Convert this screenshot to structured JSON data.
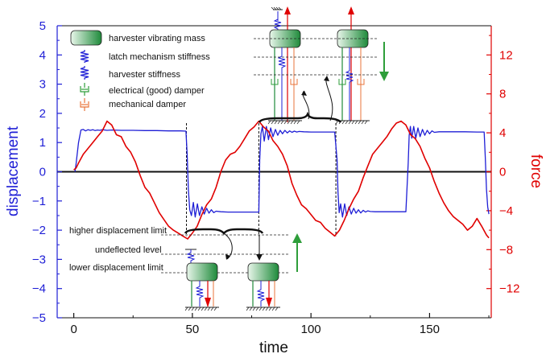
{
  "chart_data": {
    "type": "line",
    "xlabel": "time",
    "ylabel_left": "displacement",
    "ylabel_right": "force",
    "xlim": [
      -7,
      176
    ],
    "xticks": [
      0,
      50,
      100,
      150
    ],
    "ylim_left": [
      -5,
      5
    ],
    "yticks_left": [
      5,
      4,
      3,
      2,
      1,
      0,
      -1,
      -2,
      -3,
      -4,
      -5
    ],
    "ylim_right": [
      -15,
      15
    ],
    "yticks_right": [
      12,
      8,
      4,
      0,
      -4,
      -8,
      -12
    ],
    "series": [
      {
        "axis": "left",
        "color": "#1f1fd6",
        "x": [
          0.5,
          1.0,
          2.0,
          3.0,
          4.0,
          5.0,
          6.0,
          7.0,
          8.0,
          9.0,
          10.0,
          11.0,
          12.0,
          14.0,
          16.0,
          20.0,
          25.0,
          30.0,
          35.0,
          40.0,
          45.0,
          47.3,
          47.8,
          48.3,
          48.9,
          49.6,
          50.4,
          51.2,
          52.1,
          53.0,
          54.0,
          55.0,
          56.0,
          57.0,
          58.0,
          59.0,
          60.0,
          62.0,
          65.0,
          70.0,
          75.0,
          78.0,
          78.4,
          78.9,
          79.5,
          80.3,
          81.2,
          82.1,
          83.0,
          84.0,
          85.0,
          86.0,
          87.0,
          88.0,
          89.0,
          90.0,
          91.0,
          92.0,
          93.0,
          94.0,
          95.0,
          97.0,
          100.0,
          105.0,
          110.0,
          111.0,
          111.4,
          111.9,
          112.5,
          113.3,
          114.2,
          115.1,
          116.0,
          117.0,
          118.0,
          119.0,
          120.0,
          121.0,
          122.0,
          123.0,
          124.0,
          125.0,
          127.0,
          130.0,
          135.0,
          140.0,
          141.0,
          141.4,
          141.9,
          142.5,
          143.3,
          144.2,
          145.1,
          146.0,
          147.0,
          148.0,
          149.0,
          150.0,
          151.0,
          152.0,
          154.0,
          157.0,
          160.0,
          165.0,
          170.0,
          173.0,
          173.5,
          174.0,
          174.5,
          175.0
        ],
        "y": [
          0.0,
          0.3,
          1.0,
          1.43,
          1.45,
          1.4,
          1.44,
          1.42,
          1.44,
          1.41,
          1.43,
          1.42,
          1.44,
          1.42,
          1.43,
          1.42,
          1.42,
          1.41,
          1.41,
          1.4,
          1.4,
          1.39,
          0.6,
          -0.6,
          -1.3,
          -1.5,
          -1.05,
          -1.55,
          -1.1,
          -1.5,
          -1.2,
          -1.45,
          -1.25,
          -1.42,
          -1.3,
          -1.4,
          -1.35,
          -1.37,
          -1.38,
          -1.38,
          -1.38,
          -1.38,
          0.4,
          1.3,
          1.55,
          1.05,
          1.55,
          1.1,
          1.5,
          1.2,
          1.45,
          1.25,
          1.42,
          1.3,
          1.42,
          1.33,
          1.4,
          1.35,
          1.39,
          1.36,
          1.38,
          1.37,
          1.36,
          1.36,
          1.36,
          0.4,
          -0.7,
          -1.4,
          -1.1,
          -1.55,
          -1.1,
          -1.5,
          -1.2,
          -1.45,
          -1.25,
          -1.42,
          -1.3,
          -1.41,
          -1.32,
          -1.38,
          -1.34,
          -1.36,
          -1.37,
          -1.37,
          -1.37,
          -1.37,
          0.3,
          1.25,
          1.55,
          1.15,
          1.55,
          1.15,
          1.5,
          1.2,
          1.45,
          1.25,
          1.42,
          1.3,
          1.4,
          1.35,
          1.37,
          1.37,
          1.37,
          1.37,
          1.36,
          1.36,
          0.5,
          -0.6,
          -1.2,
          -1.45
        ]
      },
      {
        "axis": "right",
        "color": "#e00000",
        "x": [
          0.0,
          1.0,
          2.0,
          4.0,
          6.0,
          8.0,
          10.0,
          12.0,
          14.0,
          16.0,
          18.0,
          20.0,
          22.0,
          24.0,
          26.0,
          28.0,
          30.0,
          32.0,
          34.0,
          36.0,
          38.0,
          40.0,
          42.0,
          44.0,
          46.0,
          48.0,
          50.0,
          52.0,
          54.0,
          56.0,
          58.0,
          60.0,
          62.0,
          64.0,
          66.0,
          68.0,
          70.0,
          72.0,
          74.0,
          76.0,
          78.0,
          80.0,
          82.0,
          84.0,
          86.0,
          88.0,
          90.0,
          92.0,
          94.0,
          96.0,
          98.0,
          100.0,
          102.0,
          104.0,
          106.0,
          108.0,
          110.0,
          112.0,
          114.0,
          116.0,
          118.0,
          120.0,
          122.0,
          124.0,
          126.0,
          128.0,
          130.0,
          132.0,
          134.0,
          136.0,
          138.0,
          140.0,
          142.0,
          144.0,
          146.0,
          148.0,
          150.0,
          152.0,
          154.0,
          156.0,
          158.0,
          160.0,
          162.0,
          164.0,
          166.0,
          168.0,
          170.0,
          172.0,
          174.0,
          175.0
        ],
        "y": [
          0.2,
          0.4,
          0.9,
          1.8,
          2.4,
          3.0,
          3.6,
          4.2,
          5.2,
          4.8,
          3.8,
          3.6,
          2.6,
          2.0,
          1.0,
          -0.4,
          -1.6,
          -2.2,
          -3.2,
          -4.2,
          -4.9,
          -5.6,
          -6.0,
          -6.3,
          -6.6,
          -6.9,
          -6.3,
          -5.6,
          -4.4,
          -3.4,
          -2.8,
          -1.6,
          0.0,
          1.2,
          1.8,
          2.0,
          2.6,
          3.4,
          4.2,
          4.6,
          5.2,
          4.6,
          4.2,
          3.2,
          2.6,
          1.8,
          0.6,
          -1.2,
          -2.4,
          -3.4,
          -3.8,
          -4.4,
          -5.0,
          -5.2,
          -5.8,
          -6.2,
          -6.6,
          -6.0,
          -5.0,
          -3.8,
          -2.8,
          -2.0,
          -0.6,
          0.6,
          1.8,
          2.4,
          3.0,
          3.6,
          4.4,
          5.0,
          5.2,
          4.8,
          3.8,
          3.4,
          2.6,
          1.4,
          0.4,
          -1.0,
          -2.2,
          -3.2,
          -4.0,
          -4.6,
          -5.0,
          -5.4,
          -6.0,
          -5.6,
          -4.8,
          -5.6,
          -6.5,
          -6.8
        ]
      }
    ],
    "vlines": [
      47.5,
      78.0,
      110.5
    ]
  },
  "legend": {
    "mass": "harvester vibrating mass",
    "latch": "latch mechanism stiffness",
    "stiffness": "harvester stiffness",
    "edamper": "electrical (good) damper",
    "mdamper": "mechanical damper"
  },
  "annotations": {
    "higher": "higher displacement limit",
    "undeflected": "undeflected level",
    "lower": "lower displacement limit"
  },
  "colors": {
    "blue": "#1f1fd6",
    "red": "#e00000",
    "green": "#2e9e3a",
    "orange": "#e8743b"
  }
}
